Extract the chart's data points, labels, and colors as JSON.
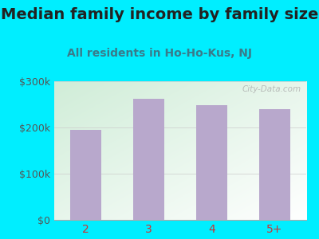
{
  "title": "Median family income by family size",
  "subtitle": "All residents in Ho-Ho-Kus, NJ",
  "categories": [
    "2",
    "3",
    "4",
    "5+"
  ],
  "values": [
    195000,
    262000,
    248000,
    240000
  ],
  "bar_color": "#b8a8cc",
  "background_outer": "#00eeff",
  "bg_gradient_colors": [
    "#d0edd8",
    "#f0f8ee",
    "#f8f8f0",
    "#ffffff"
  ],
  "title_color": "#222222",
  "subtitle_color": "#3a7a8a",
  "ytick_color": "#555555",
  "xtick_color": "#cc3333",
  "ylim": [
    0,
    300000
  ],
  "yticks": [
    0,
    100000,
    200000,
    300000
  ],
  "ytick_labels": [
    "$0",
    "$100k",
    "$200k",
    "$300k"
  ],
  "title_fontsize": 14,
  "subtitle_fontsize": 10,
  "watermark": "City-Data.com"
}
